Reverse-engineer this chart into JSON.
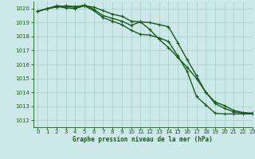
{
  "title": "Graphe pression niveau de la mer (hPa)",
  "x_range": [
    -0.5,
    23
  ],
  "y_range": [
    1011.5,
    1020.5
  ],
  "y_ticks": [
    1012,
    1013,
    1014,
    1015,
    1016,
    1017,
    1018,
    1019,
    1020
  ],
  "x_ticks": [
    0,
    1,
    2,
    3,
    4,
    5,
    6,
    7,
    8,
    9,
    10,
    11,
    12,
    13,
    14,
    15,
    16,
    17,
    18,
    19,
    20,
    21,
    22,
    23
  ],
  "background_color": "#cce8e8",
  "grid_color": "#aacccc",
  "line_color": "#1a5c1a",
  "series1": [
    1019.8,
    1020.0,
    1020.1,
    1020.2,
    1020.15,
    1020.2,
    1020.1,
    1019.85,
    1019.6,
    1019.45,
    1019.1,
    1019.05,
    1018.5,
    1017.8,
    1017.2,
    1016.5,
    1015.8,
    1015.0,
    1014.0,
    1013.3,
    1013.05,
    1012.7,
    1012.55,
    1012.5
  ],
  "series2": [
    1019.8,
    1020.0,
    1020.2,
    1020.15,
    1020.1,
    1020.25,
    1019.95,
    1019.5,
    1019.3,
    1019.1,
    1018.8,
    1019.05,
    1019.0,
    1018.85,
    1018.7,
    1017.55,
    1016.35,
    1015.2,
    1014.0,
    1013.2,
    1012.85,
    1012.6,
    1012.5,
    1012.5
  ],
  "series3": [
    1019.8,
    1019.98,
    1020.15,
    1020.05,
    1020.0,
    1020.2,
    1019.85,
    1019.35,
    1019.1,
    1018.85,
    1018.45,
    1018.15,
    1018.1,
    1017.9,
    1017.65,
    1016.6,
    1015.5,
    1013.7,
    1013.1,
    1012.5,
    1012.45,
    1012.45,
    1012.45,
    1012.45
  ],
  "marker_size": 3.0,
  "line_width": 1.0
}
